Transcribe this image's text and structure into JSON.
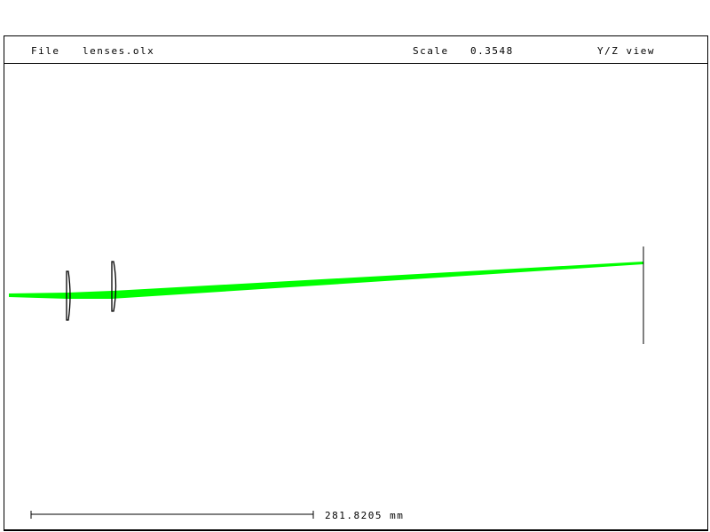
{
  "header": {
    "file_label": "File",
    "file_name": "lenses.olx",
    "scale_label": "Scale",
    "scale_value": "0.3548",
    "view": "Y/Z view"
  },
  "scale_bar": {
    "length_text": "281.8205 mm"
  },
  "colors": {
    "ray": "#00ff00",
    "lines": "#000000"
  }
}
